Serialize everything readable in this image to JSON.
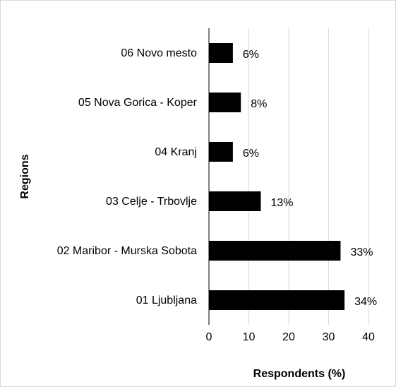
{
  "chart_data": {
    "type": "barh",
    "categories": [
      "06 Novo mesto",
      "05 Nova Gorica - Koper",
      "04 Kranj",
      "03 Celje - Trbovlje",
      "02 Maribor - Murska Sobota",
      "01 Ljubljana"
    ],
    "values": [
      6,
      8,
      6,
      13,
      33,
      34
    ],
    "value_labels": [
      "6%",
      "8%",
      "6%",
      "13%",
      "33%",
      "34%"
    ],
    "color": "#000000",
    "xlim": [
      0,
      40
    ],
    "xticks": [
      0,
      10,
      20,
      30,
      40
    ],
    "grid": true,
    "xlabel": "Respondents (%)",
    "ylabel": "Regions"
  }
}
